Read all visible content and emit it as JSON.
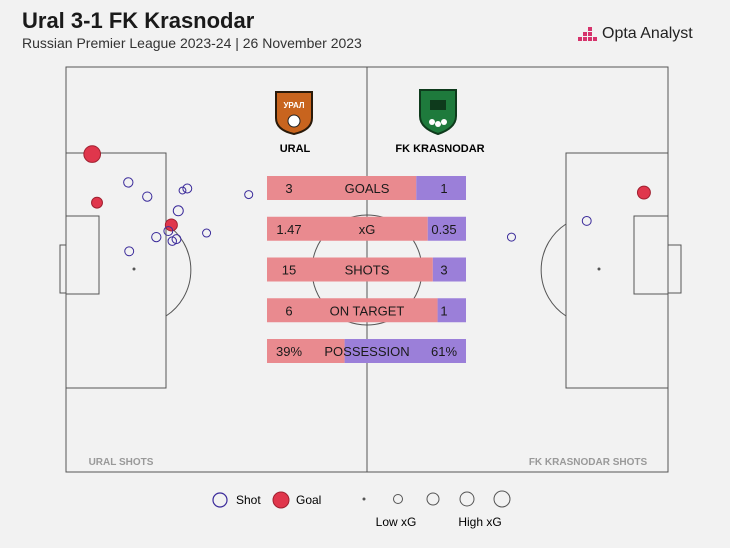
{
  "header": {
    "title": "Ural 3-1 FK Krasnodar",
    "subtitle": "Russian Premier League 2023-24 | 26 November 2023",
    "brand": "Opta Analyst"
  },
  "teams": {
    "home": {
      "name": "URAL",
      "crest_name": "ural-crest-icon",
      "crest_color": "#c8641e"
    },
    "away": {
      "name": "FK KRASNODAR",
      "crest_name": "krasnodar-crest-icon",
      "crest_color": "#1e7a3c"
    }
  },
  "colors": {
    "home": "#e98a8f",
    "away": "#9b7fd9",
    "goal": "#e0364c",
    "shot_stroke": "#3a2a9a"
  },
  "pitch_labels": {
    "home_shots": "URAL SHOTS",
    "away_shots": "FK KRASNODAR SHOTS"
  },
  "legend": {
    "shot": "Shot",
    "goal": "Goal",
    "low_xg": "Low xG",
    "high_xg": "High xG"
  },
  "chart_data": [
    {
      "type": "bar",
      "title": "",
      "categories": [
        "GOALS",
        "xG",
        "SHOTS",
        "ON TARGET",
        "POSSESSION"
      ],
      "series": [
        {
          "name": "URAL",
          "values": [
            3,
            1.47,
            15,
            6,
            39
          ],
          "labels": [
            "3",
            "1.47",
            "15",
            "6",
            "39%"
          ]
        },
        {
          "name": "FK KRASNODAR",
          "values": [
            1,
            0.35,
            3,
            1,
            61
          ],
          "labels": [
            "1",
            "0.35",
            "3",
            "1",
            "61%"
          ]
        }
      ]
    },
    {
      "type": "scatter",
      "title": "",
      "pitch": {
        "length": 100,
        "width": 100
      },
      "series": [
        {
          "name": "URAL",
          "points": [
            {
              "x": 8.7,
              "y": 43,
              "xg": 0.4,
              "goal": true
            },
            {
              "x": 10.3,
              "y": 67,
              "xg": 0.12,
              "goal": true
            },
            {
              "x": 35.0,
              "y": 78,
              "xg": 0.16,
              "goal": true
            },
            {
              "x": 20.7,
              "y": 57,
              "xg": 0.07,
              "goal": false
            },
            {
              "x": 27.0,
              "y": 64,
              "xg": 0.07,
              "goal": false
            },
            {
              "x": 40.3,
              "y": 60,
              "xg": 0.06,
              "goal": false
            },
            {
              "x": 60.7,
              "y": 63,
              "xg": 0.04,
              "goal": false
            },
            {
              "x": 37.3,
              "y": 71,
              "xg": 0.09,
              "goal": false
            },
            {
              "x": 34.0,
              "y": 81,
              "xg": 0.06,
              "goal": false
            },
            {
              "x": 46.7,
              "y": 82,
              "xg": 0.04,
              "goal": false
            },
            {
              "x": 36.7,
              "y": 85,
              "xg": 0.06,
              "goal": false
            },
            {
              "x": 30.0,
              "y": 84,
              "xg": 0.07,
              "goal": false
            },
            {
              "x": 35.3,
              "y": 86,
              "xg": 0.05,
              "goal": false
            },
            {
              "x": 21.0,
              "y": 91,
              "xg": 0.06,
              "goal": false
            },
            {
              "x": 38.7,
              "y": 61,
              "xg": 0.02,
              "goal": false
            }
          ]
        },
        {
          "name": "FK KRASNODAR",
          "points": [
            {
              "x": 8.0,
              "y": 62,
              "xg": 0.2,
              "goal": true
            },
            {
              "x": 27.0,
              "y": 76,
              "xg": 0.06,
              "goal": false
            },
            {
              "x": 52.0,
              "y": 84,
              "xg": 0.04,
              "goal": false
            }
          ]
        }
      ]
    }
  ]
}
